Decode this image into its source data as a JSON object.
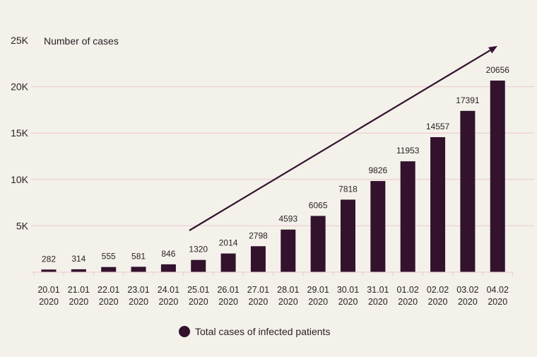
{
  "chart_data": {
    "type": "bar",
    "ylabel": "Number of cases",
    "categories": [
      "20.01\n2020",
      "21.01\n2020",
      "22.01\n2020",
      "23.01\n2020",
      "24.01\n2020",
      "25.01\n2020",
      "26.01\n2020",
      "27.01\n2020",
      "28.01\n2020",
      "29.01\n2020",
      "30.01\n2020",
      "31.01\n2020",
      "01.02\n2020",
      "02.02\n2020",
      "03.02\n2020",
      "04.02\n2020"
    ],
    "series": [
      {
        "name": "Total cases of infected patients",
        "values": [
          282,
          314,
          555,
          581,
          846,
          1320,
          2014,
          2798,
          4593,
          6065,
          7818,
          9826,
          11953,
          14557,
          17391,
          20656
        ]
      }
    ],
    "ylim": [
      0,
      25000
    ],
    "yticks": [
      {
        "value": 5000,
        "label": "5K"
      },
      {
        "value": 10000,
        "label": "10K"
      },
      {
        "value": 15000,
        "label": "15K"
      },
      {
        "value": 20000,
        "label": "20K"
      },
      {
        "value": 25000,
        "label": "25K"
      }
    ],
    "grid": true,
    "legend": "bottom",
    "trend_arrow": true,
    "colors": {
      "background": "#f3f1ea",
      "bar": "#32122d",
      "grid": "#f0c6cf",
      "text": "#2a2226",
      "arrow": "#32122d"
    }
  }
}
